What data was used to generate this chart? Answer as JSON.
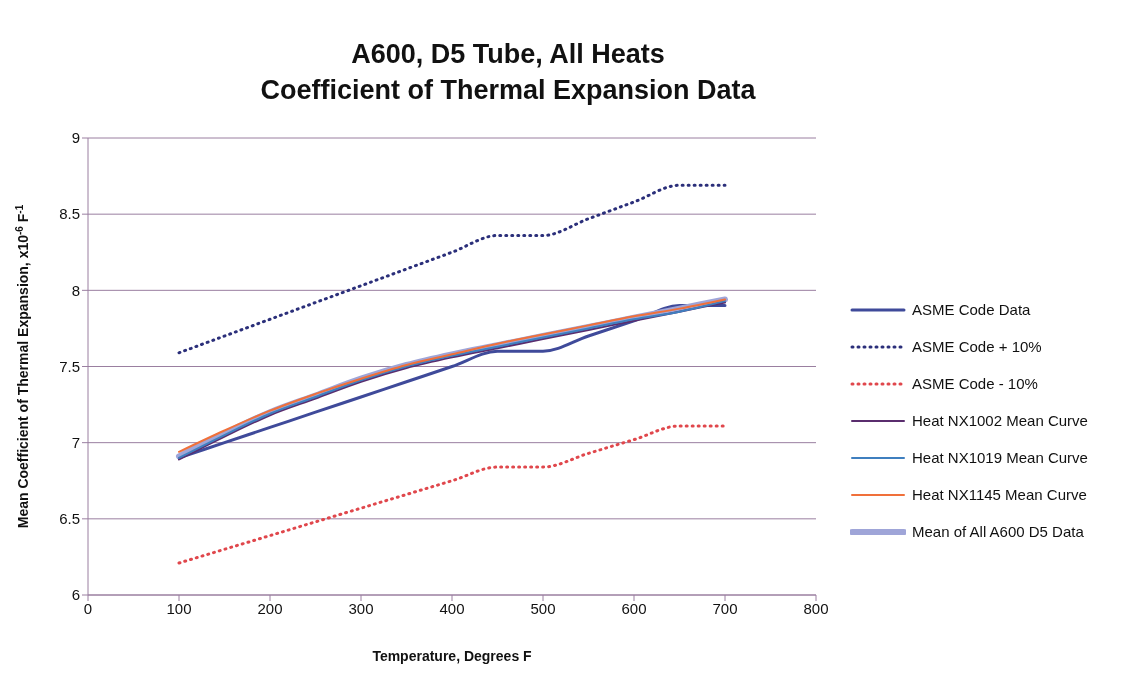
{
  "chart_data": {
    "type": "line",
    "title": "A600, D5 Tube, All Heats",
    "subtitle": "Coefficient of Thermal Expansion Data",
    "xlabel": "Temperature, Degrees F",
    "ylabel": "Mean Coefficient of Thermal Expansion, x10$^{-6}$ F$^{-1}$",
    "x": [
      100,
      150,
      200,
      250,
      300,
      350,
      400,
      450,
      500,
      550,
      600,
      650,
      700
    ],
    "series": [
      {
        "name": "ASME Code Data",
        "color": "#3f4a9a",
        "line_style": "solid",
        "values": [
          6.9,
          7.0,
          7.1,
          7.2,
          7.3,
          7.4,
          7.5,
          7.6,
          7.6,
          7.7,
          7.8,
          7.9,
          7.9
        ]
      },
      {
        "name": "ASME Code + 10%",
        "color": "#2b2f7a",
        "line_style": "dotted",
        "values": [
          7.59,
          7.7,
          7.81,
          7.92,
          8.03,
          8.14,
          8.25,
          8.36,
          8.36,
          8.47,
          8.58,
          8.69,
          8.69
        ]
      },
      {
        "name": "ASME Code - 10%",
        "color": "#e0474c",
        "line_style": "dotted",
        "values": [
          6.21,
          6.3,
          6.39,
          6.48,
          6.57,
          6.66,
          6.75,
          6.84,
          6.84,
          6.93,
          7.02,
          7.11,
          7.11
        ]
      },
      {
        "name": "Heat NX1002 Mean Curve",
        "color": "#5a2d6e",
        "line_style": "solid",
        "values": [
          6.89,
          7.04,
          7.18,
          7.29,
          7.4,
          7.49,
          7.56,
          7.62,
          7.68,
          7.74,
          7.8,
          7.86,
          7.92
        ]
      },
      {
        "name": "Heat NX1019 Mean Curve",
        "color": "#3f7fbf",
        "line_style": "solid",
        "values": [
          6.9,
          7.05,
          7.19,
          7.3,
          7.41,
          7.5,
          7.57,
          7.63,
          7.69,
          7.75,
          7.81,
          7.86,
          7.93
        ]
      },
      {
        "name": "Heat NX1145 Mean Curve",
        "color": "#f0703a",
        "line_style": "solid",
        "values": [
          6.94,
          7.08,
          7.21,
          7.32,
          7.42,
          7.51,
          7.58,
          7.65,
          7.71,
          7.77,
          7.83,
          7.88,
          7.94
        ]
      },
      {
        "name": "Mean of All A600 D5 Data",
        "color": "#9fa5d8",
        "line_style": "solid",
        "values": [
          6.91,
          7.06,
          7.2,
          7.31,
          7.42,
          7.51,
          7.58,
          7.64,
          7.7,
          7.76,
          7.82,
          7.88,
          7.94
        ]
      }
    ],
    "xlim": [
      0,
      800
    ],
    "xticks": [
      0,
      100,
      200,
      300,
      400,
      500,
      600,
      700,
      800
    ],
    "ylim": [
      6,
      9
    ],
    "yticks": [
      6,
      6.5,
      7,
      7.5,
      8,
      8.5,
      9
    ],
    "grid": "y",
    "legend": "right",
    "marker": "none"
  }
}
